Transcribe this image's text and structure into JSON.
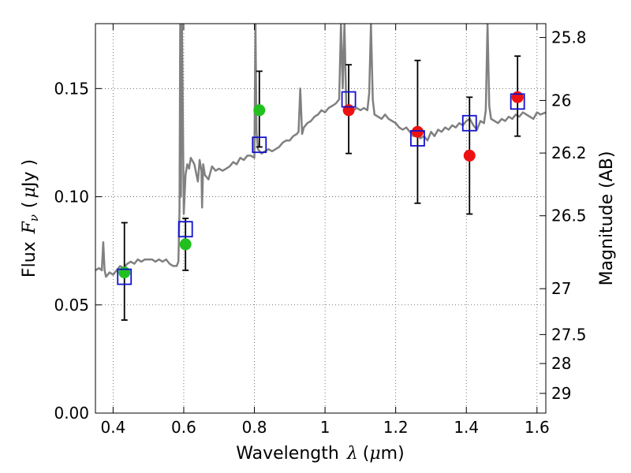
{
  "chart_data": {
    "type": "scatter",
    "title": "",
    "xlabel": {
      "prefix": "Wavelength",
      "symbol": "λ",
      "unit_open": "(",
      "unit_mu": "μ",
      "unit_rest": "m)"
    },
    "ylabel": {
      "prefix": "Flux",
      "symbol": "F",
      "subscript": "ν",
      "unit_open": "(",
      "unit_mu": "μ",
      "unit_rest": "Jy )"
    },
    "y2label": "Magnitude (AB)",
    "xlim": [
      0.35,
      1.625
    ],
    "ylim": [
      0.0,
      0.18
    ],
    "grid": true,
    "grid_style": "dotted",
    "x_ticks": [
      {
        "value": 0.4,
        "label": "0.4"
      },
      {
        "value": 0.6,
        "label": "0.6"
      },
      {
        "value": 0.8,
        "label": "0.8"
      },
      {
        "value": 1.0,
        "label": "1"
      },
      {
        "value": 1.2,
        "label": "1.2"
      },
      {
        "value": 1.4,
        "label": "1.4"
      },
      {
        "value": 1.6,
        "label": "1.6"
      }
    ],
    "y_ticks": [
      {
        "value": 0.0,
        "label": "0.00"
      },
      {
        "value": 0.05,
        "label": "0.05"
      },
      {
        "value": 0.1,
        "label": "0.10"
      },
      {
        "value": 0.15,
        "label": "0.15"
      }
    ],
    "y2_ticks": [
      {
        "label": "25.8",
        "flux": 0.1736
      },
      {
        "label": "26",
        "flux": 0.1445
      },
      {
        "label": "26.2",
        "flux": 0.1202
      },
      {
        "label": "26.5",
        "flux": 0.0912
      },
      {
        "label": "27",
        "flux": 0.0575
      },
      {
        "label": "27.5",
        "flux": 0.0363
      },
      {
        "label": "28",
        "flux": 0.0229
      },
      {
        "label": "29",
        "flux": 0.0091
      }
    ],
    "colors": {
      "spectrum": "#808080",
      "green_points": "#22c01e",
      "red_points": "#ee1111",
      "model_boxes": "#1111cc",
      "errorbars": "#000000",
      "grid": "#555555"
    },
    "series": [
      {
        "name": "template spectrum",
        "kind": "line",
        "x": [
          0.35,
          0.36,
          0.368,
          0.372,
          0.376,
          0.38,
          0.39,
          0.4,
          0.41,
          0.42,
          0.43,
          0.44,
          0.45,
          0.46,
          0.47,
          0.48,
          0.49,
          0.5,
          0.51,
          0.52,
          0.53,
          0.54,
          0.55,
          0.56,
          0.57,
          0.58,
          0.585,
          0.588,
          0.59,
          0.592,
          0.595,
          0.6,
          0.605,
          0.61,
          0.615,
          0.62,
          0.63,
          0.64,
          0.645,
          0.65,
          0.652,
          0.655,
          0.66,
          0.67,
          0.68,
          0.69,
          0.7,
          0.71,
          0.72,
          0.73,
          0.74,
          0.75,
          0.76,
          0.77,
          0.78,
          0.79,
          0.8,
          0.803,
          0.806,
          0.81,
          0.82,
          0.83,
          0.84,
          0.85,
          0.86,
          0.87,
          0.88,
          0.89,
          0.9,
          0.91,
          0.92,
          0.925,
          0.93,
          0.935,
          0.94,
          0.95,
          0.96,
          0.97,
          0.98,
          0.99,
          1.0,
          1.01,
          1.02,
          1.03,
          1.04,
          1.045,
          1.05,
          1.055,
          1.06,
          1.07,
          1.08,
          1.09,
          1.1,
          1.11,
          1.12,
          1.125,
          1.13,
          1.135,
          1.14,
          1.15,
          1.16,
          1.17,
          1.18,
          1.19,
          1.2,
          1.21,
          1.22,
          1.23,
          1.24,
          1.25,
          1.26,
          1.27,
          1.28,
          1.29,
          1.3,
          1.31,
          1.32,
          1.33,
          1.34,
          1.35,
          1.36,
          1.37,
          1.38,
          1.39,
          1.4,
          1.41,
          1.42,
          1.43,
          1.44,
          1.45,
          1.455,
          1.46,
          1.465,
          1.47,
          1.48,
          1.49,
          1.5,
          1.51,
          1.52,
          1.53,
          1.54,
          1.55,
          1.56,
          1.57,
          1.58,
          1.59,
          1.6,
          1.61,
          1.625
        ],
        "y": [
          0.066,
          0.067,
          0.066,
          0.079,
          0.066,
          0.063,
          0.065,
          0.064,
          0.066,
          0.068,
          0.067,
          0.069,
          0.07,
          0.069,
          0.071,
          0.07,
          0.071,
          0.071,
          0.071,
          0.07,
          0.071,
          0.07,
          0.071,
          0.069,
          0.068,
          0.068,
          0.07,
          0.095,
          0.18,
          0.1,
          0.18,
          0.092,
          0.11,
          0.115,
          0.113,
          0.118,
          0.115,
          0.107,
          0.117,
          0.112,
          0.095,
          0.115,
          0.11,
          0.108,
          0.114,
          0.112,
          0.113,
          0.112,
          0.113,
          0.114,
          0.116,
          0.115,
          0.118,
          0.117,
          0.119,
          0.119,
          0.118,
          0.18,
          0.13,
          0.122,
          0.12,
          0.121,
          0.122,
          0.121,
          0.122,
          0.123,
          0.125,
          0.126,
          0.126,
          0.128,
          0.129,
          0.13,
          0.15,
          0.129,
          0.132,
          0.134,
          0.135,
          0.137,
          0.138,
          0.14,
          0.139,
          0.141,
          0.142,
          0.143,
          0.145,
          0.18,
          0.15,
          0.18,
          0.142,
          0.141,
          0.14,
          0.141,
          0.14,
          0.141,
          0.14,
          0.148,
          0.18,
          0.145,
          0.138,
          0.137,
          0.136,
          0.138,
          0.136,
          0.135,
          0.134,
          0.132,
          0.131,
          0.132,
          0.13,
          0.128,
          0.129,
          0.127,
          0.128,
          0.126,
          0.13,
          0.128,
          0.131,
          0.13,
          0.132,
          0.131,
          0.133,
          0.132,
          0.134,
          0.133,
          0.135,
          0.136,
          0.133,
          0.131,
          0.135,
          0.134,
          0.14,
          0.18,
          0.142,
          0.136,
          0.135,
          0.134,
          0.136,
          0.135,
          0.137,
          0.136,
          0.138,
          0.137,
          0.139,
          0.138,
          0.137,
          0.136,
          0.139,
          0.138,
          0.139
        ]
      },
      {
        "name": "observed (green)",
        "kind": "points",
        "marker": "circle",
        "x": [
          0.432,
          0.605,
          0.814
        ],
        "y": [
          0.065,
          0.078,
          0.14
        ]
      },
      {
        "name": "observed (red)",
        "kind": "points",
        "marker": "circle",
        "x": [
          1.067,
          1.262,
          1.409,
          1.545
        ],
        "y": [
          0.14,
          0.13,
          0.119,
          0.146
        ]
      },
      {
        "name": "model photometry",
        "kind": "points",
        "marker": "square-open",
        "x": [
          0.432,
          0.605,
          0.814,
          1.067,
          1.262,
          1.409,
          1.545
        ],
        "y": [
          0.063,
          0.085,
          0.124,
          0.145,
          0.127,
          0.134,
          0.144
        ]
      },
      {
        "name": "error bars",
        "kind": "errorbar",
        "x": [
          0.432,
          0.605,
          0.814,
          1.067,
          1.262,
          1.409,
          1.545
        ],
        "y_low": [
          0.043,
          0.066,
          0.123,
          0.12,
          0.097,
          0.092,
          0.128
        ],
        "y_high": [
          0.088,
          0.09,
          0.158,
          0.161,
          0.163,
          0.146,
          0.165
        ]
      }
    ]
  }
}
